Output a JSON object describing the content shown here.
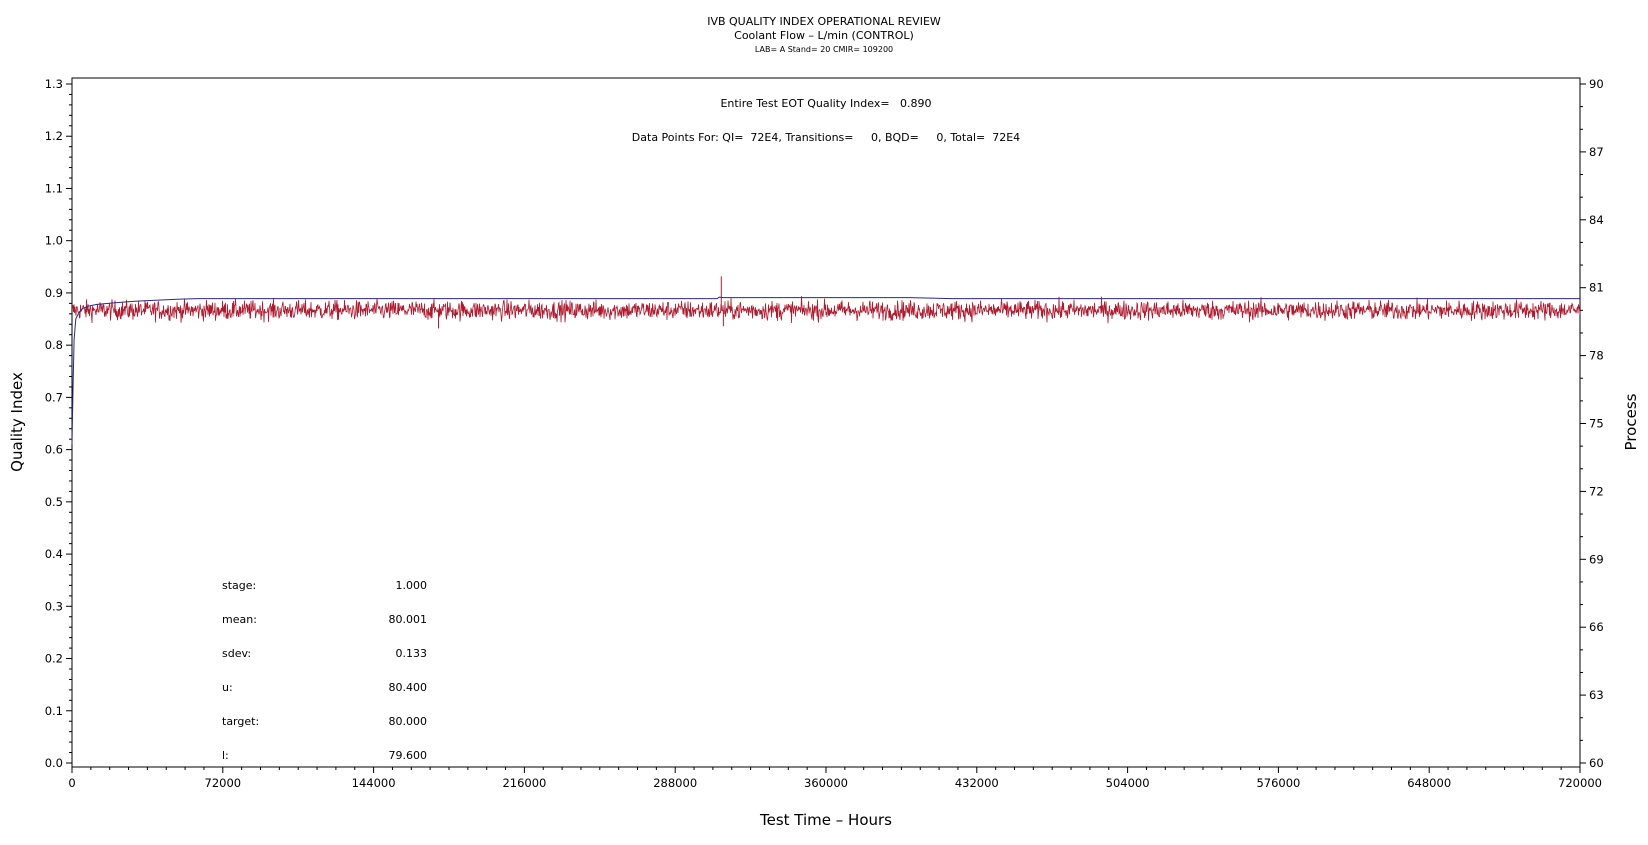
{
  "chart_data": {
    "type": "line",
    "title": "IVB QUALITY INDEX OPERATIONAL REVIEW",
    "subtitle": "Coolant Flow – L/min (CONTROL)",
    "subtitle2": "LAB= A Stand= 20 CMIR= 109200",
    "xlabel": "Test Time – Hours",
    "ylabel_left": "Quality Index",
    "ylabel_right": "Process",
    "xlim": [
      0,
      720000
    ],
    "ylim_left": [
      0.0,
      1.3
    ],
    "ylim_right": [
      60,
      90
    ],
    "x_ticks": [
      0,
      72000,
      144000,
      216000,
      288000,
      360000,
      432000,
      504000,
      576000,
      648000,
      720000
    ],
    "y_left_ticks": [
      0.0,
      0.1,
      0.2,
      0.3,
      0.4,
      0.5,
      0.6,
      0.7,
      0.8,
      0.9,
      1.0,
      1.1,
      1.2,
      1.3
    ],
    "y_right_ticks": [
      60,
      63,
      66,
      69,
      72,
      75,
      78,
      81,
      84,
      87,
      90
    ],
    "annotations": {
      "quality_index": "Entire Test EOT Quality Index=   0.890",
      "data_points": "Data Points For: QI=  72E4, Transitions=     0, BQD=     0, Total=  72E4"
    },
    "stats": [
      {
        "label": "stage:",
        "value": "1.000"
      },
      {
        "label": "mean:",
        "value": "80.001"
      },
      {
        "label": "sdev:",
        "value": "0.133"
      },
      {
        "label": "u:",
        "value": "80.400"
      },
      {
        "label": "target:",
        "value": "80.000"
      },
      {
        "label": "l:",
        "value": "79.600"
      }
    ],
    "series": [
      {
        "axis": "left",
        "color": "#2a2a8a",
        "x": [
          0,
          500,
          1000,
          1800,
          3000,
          5000,
          8000,
          12000,
          20000,
          30000,
          40000,
          50000,
          60000,
          70000,
          75000,
          100000,
          150000,
          200000,
          250000,
          300000,
          308000,
          309000,
          311000,
          330000,
          360000,
          400000,
          420000,
          450000,
          500000,
          550000,
          600000,
          650000,
          700000,
          720000
        ],
        "values": [
          0.61,
          0.72,
          0.81,
          0.85,
          0.86,
          0.87,
          0.875,
          0.878,
          0.881,
          0.884,
          0.886,
          0.888,
          0.889,
          0.889,
          0.889,
          0.889,
          0.889,
          0.889,
          0.889,
          0.889,
          0.889,
          0.892,
          0.891,
          0.891,
          0.891,
          0.891,
          0.889,
          0.889,
          0.889,
          0.889,
          0.889,
          0.889,
          0.889,
          0.889
        ]
      },
      {
        "axis": "right",
        "color": "#b01a2e",
        "mean": 80.001,
        "sdev": 0.133,
        "x_range": [
          0,
          720000
        ],
        "spikes": [
          {
            "x": 175000,
            "value": 79.2
          },
          {
            "x": 310000,
            "value": 81.5
          },
          {
            "x": 311000,
            "value": 79.3
          }
        ]
      }
    ]
  }
}
